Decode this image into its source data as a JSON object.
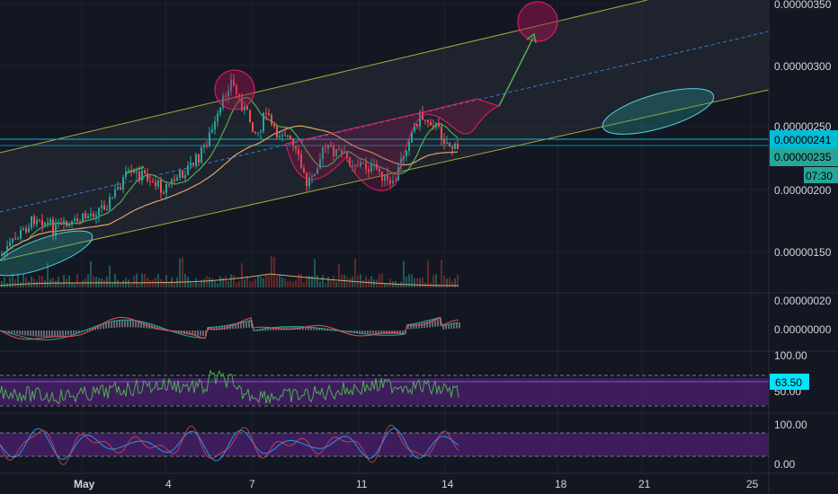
{
  "colors": {
    "background": "#131722",
    "up": "#26a69a",
    "down": "#ef5350",
    "channel": "#a8a83a",
    "midline": "#3a7bd5",
    "hline": "#00bcd4",
    "rsi_band": "#4a1f6b",
    "macd": "#26a69a",
    "signal": "#ef5350"
  },
  "price_axis": {
    "ticks": [
      "0.00000350",
      "0.00000300",
      "0.00000250",
      "0.00000200",
      "0.00000150"
    ],
    "price_badge": "0.00000241",
    "current_badge": "0.00000235",
    "countdown": "07:30"
  },
  "macd_axis": {
    "ticks": [
      "0.00000020",
      "0.00000000"
    ]
  },
  "rsi_axis": {
    "ticks": [
      "100.00",
      "50.00"
    ],
    "badge": "63.50"
  },
  "stoch_axis": {
    "ticks": [
      "100.00",
      "0.00"
    ]
  },
  "time_axis": {
    "labels": [
      {
        "text": "May",
        "bold": true
      },
      {
        "text": "4",
        "bold": false
      },
      {
        "text": "7",
        "bold": false
      },
      {
        "text": "11",
        "bold": false
      },
      {
        "text": "14",
        "bold": false
      },
      {
        "text": "18",
        "bold": false
      },
      {
        "text": "21",
        "bold": false
      },
      {
        "text": "25",
        "bold": false
      }
    ]
  }
}
